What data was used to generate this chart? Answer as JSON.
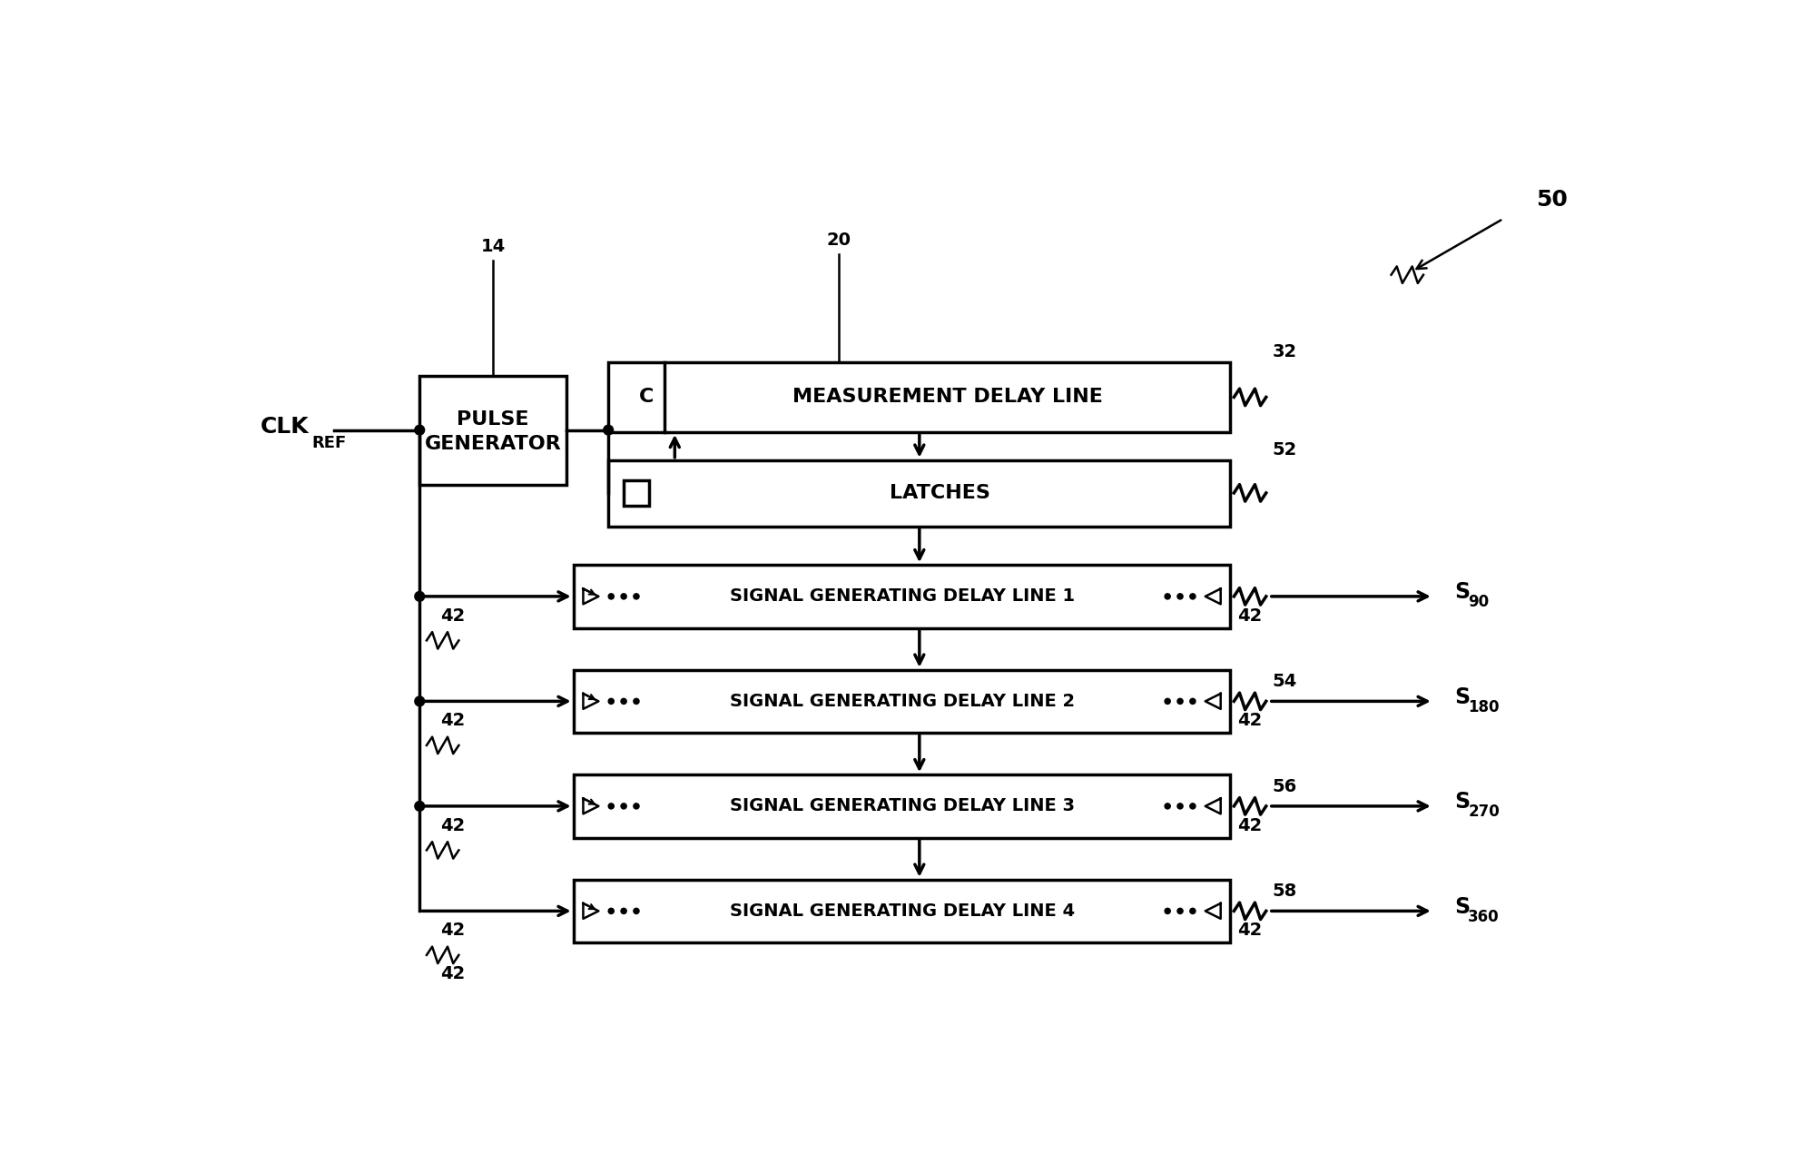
{
  "bg_color": "#ffffff",
  "fig_width": 19.95,
  "fig_height": 12.71,
  "dpi": 100,
  "lw": 2.5,
  "lw_thin": 1.8,
  "fs_main": 16,
  "fs_label": 15,
  "fs_ref": 14,
  "fs_clk": 18,
  "fs_clk_sub": 13,
  "fs_out": 17,
  "pulse_gen_text1": "PULSE",
  "pulse_gen_text2": "GENERATOR",
  "mdl_c": "C",
  "mdl_text": "MEASUREMENT DELAY LINE",
  "lat_text": "LATCHES",
  "sg_texts": [
    "SIGNAL GENERATING DELAY LINE 1",
    "SIGNAL GENERATING DELAY LINE 2",
    "SIGNAL GENERATING DELAY LINE 3",
    "SIGNAL GENERATING DELAY LINE 4"
  ],
  "out_labels_main": [
    "S",
    "S",
    "S",
    "S"
  ],
  "out_subs": [
    "90",
    "180",
    "270",
    "360"
  ],
  "ref_50": "50",
  "ref_14": "14",
  "ref_20": "20",
  "ref_32": "32",
  "ref_52": "52",
  "ref_54": "54",
  "ref_56": "56",
  "ref_58": "58",
  "ref_42": "42",
  "clk_main": "CLK",
  "clk_sub": "REF"
}
